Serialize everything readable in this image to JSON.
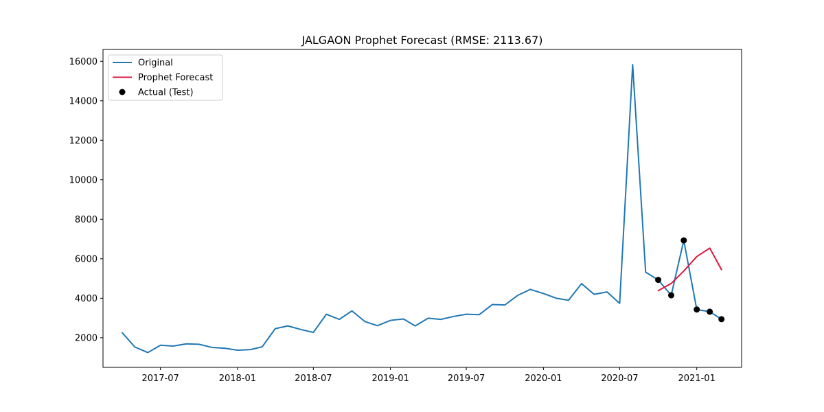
{
  "chart_data": {
    "type": "line",
    "title": "JALGAON Prophet Forecast (RMSE: 2113.67)",
    "xlabel": "",
    "ylabel": "",
    "x_tick_labels": [
      "2017-07",
      "2018-01",
      "2018-07",
      "2019-01",
      "2019-07",
      "2020-01",
      "2020-07",
      "2021-01"
    ],
    "x_ticks": [
      "2017-07-01",
      "2018-01-01",
      "2018-07-01",
      "2019-01-01",
      "2019-07-01",
      "2020-01-01",
      "2020-07-01",
      "2021-01-01"
    ],
    "y_ticks": [
      2000,
      4000,
      6000,
      8000,
      10000,
      12000,
      14000,
      16000
    ],
    "xlim": [
      "2017-02-14",
      "2021-04-18"
    ],
    "ylim": [
      500,
      16600
    ],
    "grid": false,
    "legend_position": "upper left",
    "series": [
      {
        "name": "Original",
        "type": "line",
        "color": "#1f77b4",
        "x": [
          "2017-04-01",
          "2017-05-01",
          "2017-06-01",
          "2017-07-01",
          "2017-08-01",
          "2017-09-01",
          "2017-10-01",
          "2017-11-01",
          "2017-12-01",
          "2018-01-01",
          "2018-02-01",
          "2018-03-01",
          "2018-04-01",
          "2018-05-01",
          "2018-06-01",
          "2018-07-01",
          "2018-08-01",
          "2018-09-01",
          "2018-10-01",
          "2018-11-01",
          "2018-12-01",
          "2019-01-01",
          "2019-02-01",
          "2019-03-01",
          "2019-04-01",
          "2019-05-01",
          "2019-06-01",
          "2019-07-01",
          "2019-08-01",
          "2019-09-01",
          "2019-10-01",
          "2019-11-01",
          "2019-12-01",
          "2020-01-01",
          "2020-02-01",
          "2020-03-01",
          "2020-04-01",
          "2020-05-01",
          "2020-06-01",
          "2020-07-01",
          "2020-08-01",
          "2020-09-01",
          "2020-10-01",
          "2020-11-01",
          "2020-12-01",
          "2021-01-01",
          "2021-02-01",
          "2021-03-01"
        ],
        "values": [
          2250,
          1530,
          1250,
          1620,
          1580,
          1690,
          1670,
          1510,
          1470,
          1370,
          1400,
          1540,
          2460,
          2600,
          2420,
          2270,
          3190,
          2930,
          3360,
          2820,
          2610,
          2880,
          2950,
          2600,
          2990,
          2930,
          3080,
          3190,
          3170,
          3680,
          3660,
          4150,
          4450,
          4240,
          4000,
          3900,
          4740,
          4200,
          4320,
          3740,
          15830,
          5320,
          4930,
          4150,
          6930,
          3430,
          3320,
          2940
        ]
      },
      {
        "name": "Prophet Forecast",
        "type": "line",
        "color": "#dc143c",
        "x": [
          "2020-10-01",
          "2020-11-01",
          "2020-12-01",
          "2021-01-01",
          "2021-02-01",
          "2021-03-01"
        ],
        "values": [
          4380,
          4750,
          5380,
          6110,
          6540,
          5450
        ]
      },
      {
        "name": "Actual (Test)",
        "type": "scatter",
        "color": "#000000",
        "x": [
          "2020-10-01",
          "2020-11-01",
          "2020-12-01",
          "2021-01-01",
          "2021-02-01",
          "2021-03-01"
        ],
        "values": [
          4930,
          4150,
          6930,
          3430,
          3320,
          2940
        ]
      }
    ]
  }
}
